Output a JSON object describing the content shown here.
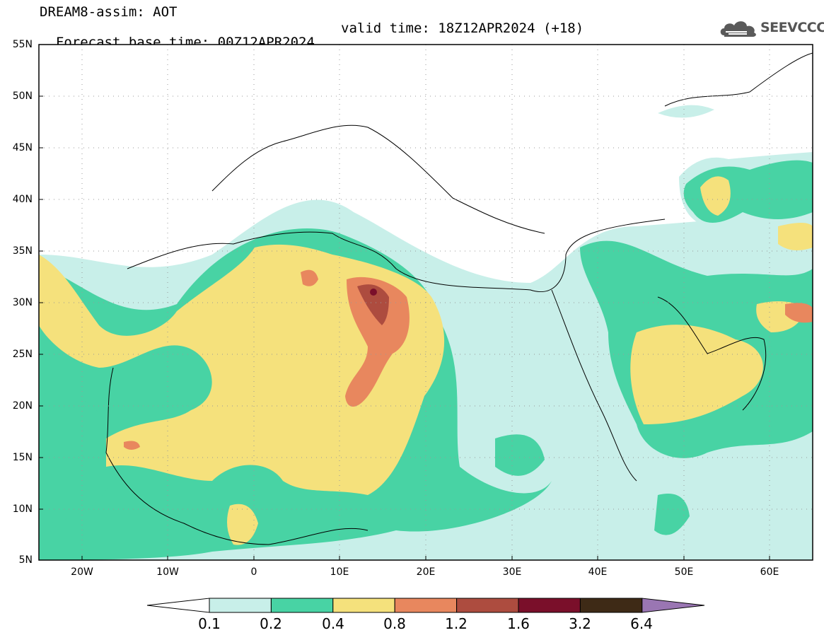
{
  "header": {
    "title_line1": "DREAM8-assim: AOT",
    "base_time": "Forecast base time: 00Z12APR2024",
    "valid_time": "valid time: 18Z12APR2024 (+18)"
  },
  "logo": {
    "text": "SEEVCCC",
    "icon": "cloud-icon"
  },
  "map": {
    "variable": "AOT",
    "lat_range": [
      5,
      55
    ],
    "lon_range": [
      -25,
      65
    ],
    "lat_labels": [
      "55N",
      "50N",
      "45N",
      "40N",
      "35N",
      "30N",
      "25N",
      "20N",
      "15N",
      "10N",
      "5N"
    ],
    "lon_labels": [
      "20W",
      "10W",
      "0",
      "10E",
      "20E",
      "30E",
      "40E",
      "50E",
      "60E"
    ]
  },
  "colorbar": {
    "levels": [
      "0.1",
      "0.2",
      "0.4",
      "0.8",
      "1.2",
      "1.6",
      "3.2",
      "6.4"
    ],
    "colors": [
      "#ffffff",
      "#c8efe9",
      "#48d3a4",
      "#f5e17c",
      "#e8875e",
      "#ad4c3f",
      "#7a0f2a",
      "#3e2a16",
      "#9a76b3"
    ]
  }
}
